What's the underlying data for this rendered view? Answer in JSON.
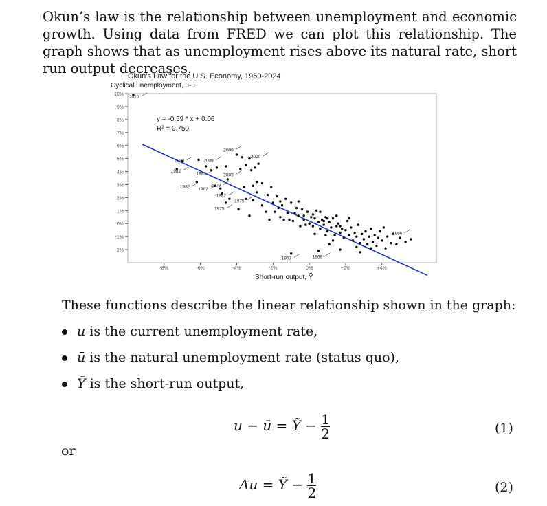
{
  "intro": "Okun’s law is the relationship between unemployment and economic growth. Using data from FRED we can plot this relationship. The graph shows that as unemployment rises above its natural rate, short run output decreases.",
  "chart_data": {
    "type": "scatter",
    "title": "Okun's Law for the U.S. Economy, 1960-2024",
    "ylabel": "Cyclical unemployment, u-ū",
    "xlabel": "Short-run output, Ỹ",
    "equation": "y = -0.59 * x + 0.06",
    "r2": "R² = 0.750",
    "xlim": [
      -10,
      7
    ],
    "ylim": [
      -3,
      10
    ],
    "x_ticks": [
      "-8%",
      "-6%",
      "-4%",
      "-2%",
      "0%",
      "+2%",
      "+4%"
    ],
    "x_tick_values": [
      -8,
      -6,
      -4,
      -2,
      0,
      2,
      4
    ],
    "y_ticks": [
      "10%",
      "9%",
      "8%",
      "7%",
      "6%",
      "5%",
      "4%",
      "3%",
      "2%",
      "1%",
      "0%",
      "-1%",
      "-2%"
    ],
    "y_tick_values": [
      10,
      9,
      8,
      7,
      6,
      5,
      4,
      3,
      2,
      1,
      0,
      -1,
      -2
    ],
    "trend_line": {
      "slope": -0.59,
      "intercept": 0.06,
      "color": "#1a2fd6"
    },
    "annotations": [
      {
        "label": "2020",
        "x": -9.7,
        "y": 9.9
      },
      {
        "label": "1983",
        "x": -7.2,
        "y": 5.0
      },
      {
        "label": "1982",
        "x": -7.4,
        "y": 4.2
      },
      {
        "label": "1982",
        "x": -6.9,
        "y": 3.0
      },
      {
        "label": "1983",
        "x": -6.0,
        "y": 4.0
      },
      {
        "label": "2009",
        "x": -5.6,
        "y": 5.0
      },
      {
        "label": "1982",
        "x": -5.9,
        "y": 2.8
      },
      {
        "label": "2009",
        "x": -5.2,
        "y": 3.1
      },
      {
        "label": "1982",
        "x": -4.9,
        "y": 2.3
      },
      {
        "label": "1975",
        "x": -5.0,
        "y": 1.3
      },
      {
        "label": "2009",
        "x": -4.5,
        "y": 5.8
      },
      {
        "label": "2009",
        "x": -4.5,
        "y": 3.9
      },
      {
        "label": "1975",
        "x": -3.9,
        "y": 1.9
      },
      {
        "label": "2020",
        "x": -3.0,
        "y": 5.3
      },
      {
        "label": "1953",
        "x": -1.3,
        "y": -2.5
      },
      {
        "label": "1969",
        "x": 0.4,
        "y": -2.4
      },
      {
        "label": "1966",
        "x": 4.8,
        "y": -0.6
      }
    ],
    "points": [
      [
        -9.7,
        9.9
      ],
      [
        -7.3,
        4.2
      ],
      [
        -7.0,
        4.8
      ],
      [
        -6.2,
        3.2
      ],
      [
        -6.1,
        4.9
      ],
      [
        -5.7,
        4.4
      ],
      [
        -5.4,
        4.1
      ],
      [
        -5.1,
        4.3
      ],
      [
        -5.2,
        2.9
      ],
      [
        -4.9,
        2.7
      ],
      [
        -4.6,
        4.4
      ],
      [
        -4.5,
        3.4
      ],
      [
        -4.8,
        2.3
      ],
      [
        -4.6,
        1.6
      ],
      [
        -4.4,
        1.9
      ],
      [
        -4.0,
        5.3
      ],
      [
        -3.7,
        5.1
      ],
      [
        -3.3,
        5.0
      ],
      [
        -3.8,
        4.2
      ],
      [
        -3.5,
        4.5
      ],
      [
        -3.2,
        4.1
      ],
      [
        -3.0,
        4.3
      ],
      [
        -2.8,
        4.6
      ],
      [
        -3.6,
        2.8
      ],
      [
        -3.1,
        2.9
      ],
      [
        -2.9,
        3.2
      ],
      [
        -2.6,
        3.1
      ],
      [
        -3.9,
        1.1
      ],
      [
        -3.3,
        0.6
      ],
      [
        -3.5,
        1.9
      ],
      [
        -3.1,
        1.8
      ],
      [
        -2.9,
        2.4
      ],
      [
        -2.6,
        1.4
      ],
      [
        -2.3,
        2.2
      ],
      [
        -2.1,
        2.8
      ],
      [
        -2.0,
        1.6
      ],
      [
        -1.8,
        2.1
      ],
      [
        -1.6,
        1.7
      ],
      [
        -1.9,
        0.9
      ],
      [
        -1.5,
        1.4
      ],
      [
        -1.3,
        1.9
      ],
      [
        -1.2,
        0.8
      ],
      [
        -1.0,
        1.6
      ],
      [
        -1.1,
        0.3
      ],
      [
        -0.9,
        0.2
      ],
      [
        -0.7,
        1.2
      ],
      [
        -0.6,
        0.6
      ],
      [
        -0.4,
        1.1
      ],
      [
        -0.3,
        0.3
      ],
      [
        -0.1,
        0.9
      ],
      [
        0.0,
        0.0
      ],
      [
        0.1,
        0.5
      ],
      [
        0.2,
        -0.2
      ],
      [
        0.3,
        0.4
      ],
      [
        0.4,
        1.0
      ],
      [
        0.5,
        0.1
      ],
      [
        0.6,
        -0.4
      ],
      [
        0.7,
        0.3
      ],
      [
        0.8,
        -0.1
      ],
      [
        0.9,
        0.5
      ],
      [
        1.0,
        -0.6
      ],
      [
        1.1,
        0.1
      ],
      [
        1.2,
        -0.3
      ],
      [
        1.3,
        0.4
      ],
      [
        1.4,
        -0.9
      ],
      [
        1.5,
        -0.2
      ],
      [
        1.6,
        0.0
      ],
      [
        1.7,
        -0.7
      ],
      [
        1.8,
        -0.4
      ],
      [
        1.9,
        -1.1
      ],
      [
        2.0,
        -0.5
      ],
      [
        2.1,
        0.2
      ],
      [
        2.2,
        -0.9
      ],
      [
        2.3,
        -0.3
      ],
      [
        2.4,
        -1.3
      ],
      [
        2.5,
        -0.7
      ],
      [
        2.6,
        -1.0
      ],
      [
        2.7,
        -0.1
      ],
      [
        2.8,
        -1.5
      ],
      [
        2.9,
        -0.8
      ],
      [
        3.0,
        -1.2
      ],
      [
        3.1,
        -0.6
      ],
      [
        3.2,
        -1.6
      ],
      [
        3.3,
        -1.0
      ],
      [
        3.4,
        -0.4
      ],
      [
        3.5,
        -1.4
      ],
      [
        3.6,
        -0.9
      ],
      [
        3.7,
        -1.7
      ],
      [
        3.8,
        -1.1
      ],
      [
        3.9,
        -0.6
      ],
      [
        4.0,
        -1.3
      ],
      [
        4.2,
        -1.9
      ],
      [
        4.3,
        -1.0
      ],
      [
        4.5,
        -1.5
      ],
      [
        4.6,
        -0.8
      ],
      [
        4.8,
        -1.6
      ],
      [
        5.0,
        -1.1
      ],
      [
        5.3,
        -1.4
      ],
      [
        5.6,
        -1.2
      ],
      [
        -1.4,
        0.3
      ],
      [
        -0.8,
        0.8
      ],
      [
        -0.2,
        -0.1
      ],
      [
        0.2,
        0.7
      ],
      [
        0.6,
        0.9
      ],
      [
        1.0,
        0.4
      ],
      [
        1.5,
        0.6
      ],
      [
        -1.7,
        1.2
      ],
      [
        -2.4,
        0.9
      ],
      [
        -0.5,
        -0.2
      ],
      [
        0.9,
        -0.9
      ],
      [
        1.7,
        -0.2
      ],
      [
        2.2,
        0.4
      ],
      [
        2.6,
        -1.8
      ],
      [
        -1.0,
        -2.3
      ],
      [
        0.5,
        -2.1
      ],
      [
        1.7,
        -2.0
      ],
      [
        2.8,
        -2.2
      ],
      [
        -2.2,
        0.3
      ],
      [
        -0.3,
        0.6
      ],
      [
        0.8,
        0.2
      ],
      [
        1.3,
        -1.3
      ],
      [
        3.4,
        -1.9
      ],
      [
        4.1,
        -0.3
      ],
      [
        -1.6,
        0.5
      ],
      [
        -0.6,
        1.7
      ],
      [
        0.3,
        -0.8
      ],
      [
        1.1,
        -1.6
      ]
    ]
  },
  "describe": "These functions describe the linear relationship shown in the graph:",
  "bullets": [
    {
      "sym": "u",
      "text": " is the current unemployment rate,"
    },
    {
      "sym": "ū",
      "text": " is the natural unemployment rate (status quo),"
    },
    {
      "sym": "Ỹ",
      "text": " is the short-run output,"
    }
  ],
  "eq1": {
    "lhs": "u − ū = Ỹ −",
    "num": "1",
    "den": "2",
    "number": "(1)"
  },
  "or": "or",
  "eq2": {
    "lhs": "Δu = Ỹ −",
    "num": "1",
    "den": "2",
    "number": "(2)"
  }
}
